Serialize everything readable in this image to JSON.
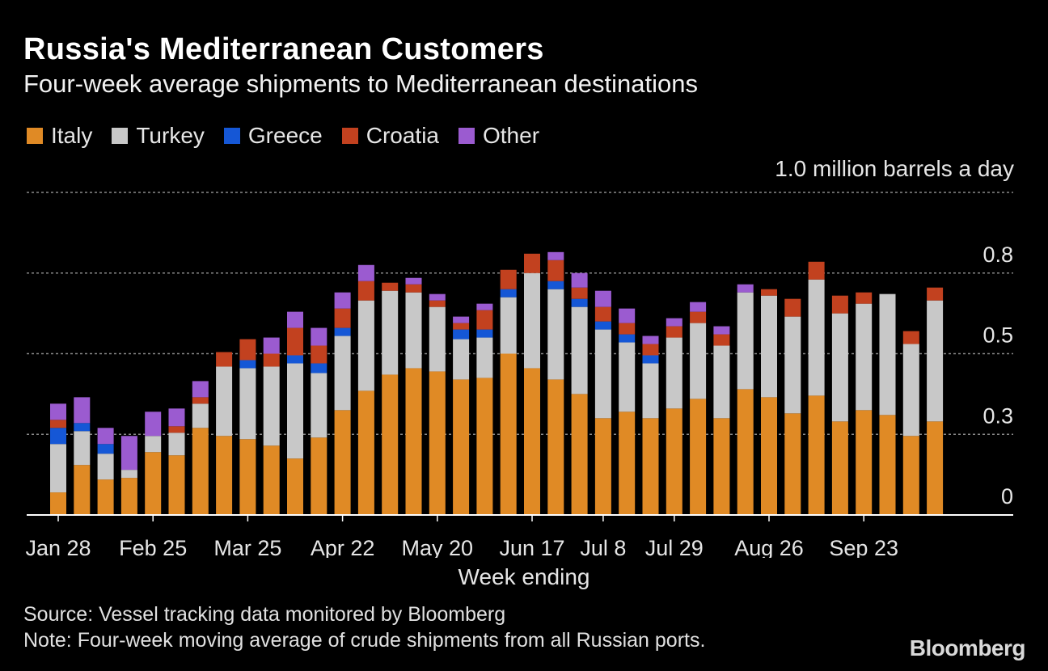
{
  "title": "Russia's Mediterranean Customers",
  "subtitle": "Four-week average shipments to Mediterranean destinations",
  "unit_label": "1.0 million barrels a day",
  "source": "Source: Vessel tracking data monitored by Bloomberg",
  "note": "Note: Four-week moving average of crude shipments from all Russian ports.",
  "logo": "Bloomberg",
  "legend": [
    {
      "name": "Italy",
      "color": "#e08a25"
    },
    {
      "name": "Turkey",
      "color": "#c8c8c8"
    },
    {
      "name": "Greece",
      "color": "#1557d6"
    },
    {
      "name": "Croatia",
      "color": "#c2411f"
    },
    {
      "name": "Other",
      "color": "#9b5bd0"
    }
  ],
  "chart_data": {
    "type": "bar",
    "stacked": true,
    "xlabel": "Week ending",
    "ylabel": "",
    "ylim": [
      0,
      1.0
    ],
    "y_ticks": [
      {
        "value": 0,
        "label": "0"
      },
      {
        "value": 0.25,
        "label": "0.3"
      },
      {
        "value": 0.5,
        "label": "0.5"
      },
      {
        "value": 0.75,
        "label": "0.8"
      },
      {
        "value": 1.0,
        "label": "1.0"
      }
    ],
    "x_tick_labels": [
      {
        "index": 0,
        "label": "Jan 28"
      },
      {
        "index": 4,
        "label": "Feb 25"
      },
      {
        "index": 8,
        "label": "Mar 25"
      },
      {
        "index": 12,
        "label": "Apr 22"
      },
      {
        "index": 16,
        "label": "May 20"
      },
      {
        "index": 20,
        "label": "Jun 17"
      },
      {
        "index": 23,
        "label": "Jul 8"
      },
      {
        "index": 26,
        "label": "Jul 29"
      },
      {
        "index": 30,
        "label": "Aug 26"
      },
      {
        "index": 34,
        "label": "Sep 23"
      }
    ],
    "grid": true,
    "legend_position": "top-left",
    "series": [
      {
        "name": "Italy",
        "values": [
          0.07,
          0.155,
          0.11,
          0.115,
          0.195,
          0.185,
          0.27,
          0.245,
          0.235,
          0.215,
          0.175,
          0.24,
          0.325,
          0.385,
          0.435,
          0.455,
          0.445,
          0.42,
          0.425,
          0.5,
          0.455,
          0.42,
          0.375,
          0.3,
          0.32,
          0.3,
          0.33,
          0.36,
          0.3,
          0.39,
          0.365,
          0.315,
          0.37,
          0.29,
          0.325,
          0.31,
          0.245,
          0.29
        ]
      },
      {
        "name": "Turkey",
        "values": [
          0.15,
          0.105,
          0.08,
          0.025,
          0.05,
          0.07,
          0.075,
          0.215,
          0.22,
          0.245,
          0.295,
          0.2,
          0.23,
          0.28,
          0.26,
          0.235,
          0.2,
          0.125,
          0.125,
          0.175,
          0.295,
          0.28,
          0.27,
          0.275,
          0.215,
          0.17,
          0.22,
          0.235,
          0.225,
          0.3,
          0.315,
          0.3,
          0.36,
          0.335,
          0.33,
          0.375,
          0.285,
          0.375
        ]
      },
      {
        "name": "Greece",
        "values": [
          0.05,
          0.025,
          0.03,
          0,
          0,
          0,
          0,
          0,
          0.025,
          0,
          0.025,
          0.03,
          0.025,
          0,
          0,
          0,
          0,
          0.03,
          0.025,
          0.025,
          0,
          0.025,
          0.025,
          0.025,
          0.025,
          0.025,
          0,
          0,
          0,
          0,
          0,
          0,
          0,
          0,
          0,
          0,
          0,
          0
        ]
      },
      {
        "name": "Croatia",
        "values": [
          0.025,
          0,
          0,
          0,
          0,
          0.02,
          0.02,
          0.045,
          0.065,
          0.04,
          0.085,
          0.055,
          0.06,
          0.06,
          0.025,
          0.025,
          0.02,
          0.02,
          0.06,
          0.06,
          0.06,
          0.065,
          0.035,
          0.045,
          0.035,
          0.035,
          0.035,
          0.035,
          0.035,
          0,
          0.02,
          0.055,
          0.055,
          0.055,
          0.035,
          0,
          0.04,
          0.04
        ]
      },
      {
        "name": "Other",
        "values": [
          0.05,
          0.08,
          0.05,
          0.105,
          0.075,
          0.055,
          0.05,
          0,
          0,
          0.05,
          0.05,
          0.055,
          0.05,
          0.05,
          0,
          0.02,
          0.02,
          0.02,
          0.02,
          0,
          0,
          0.025,
          0.045,
          0.05,
          0.045,
          0.025,
          0.025,
          0.03,
          0.025,
          0.025,
          0,
          0,
          0,
          0,
          0,
          0,
          0,
          0
        ]
      }
    ]
  }
}
